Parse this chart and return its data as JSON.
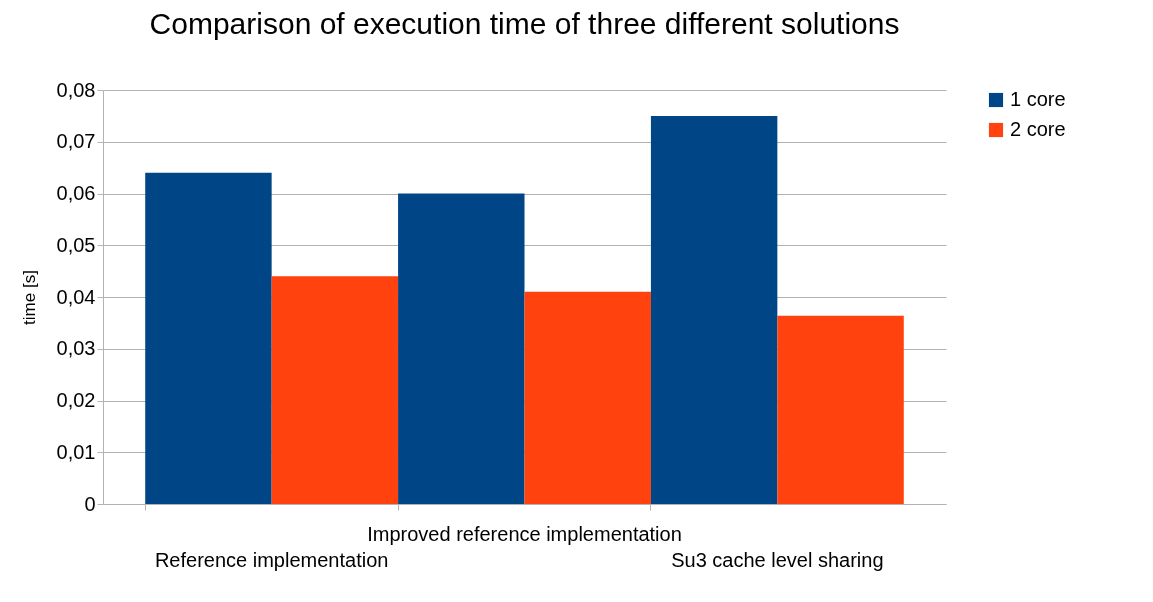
{
  "chart_data": {
    "type": "bar",
    "title": "Comparison of execution time of three different solutions",
    "ylabel": "time [s]",
    "categories": [
      "Reference implementation",
      "Improved reference implementation",
      "Su3 cache level sharing"
    ],
    "series": [
      {
        "name": "1 core",
        "color": "#004586",
        "values": [
          0.064,
          0.06,
          0.075
        ]
      },
      {
        "name": "2 core",
        "color": "#ff420e",
        "values": [
          0.044,
          0.041,
          0.0364
        ]
      }
    ],
    "ylim": [
      0,
      0.08
    ],
    "yticks": [
      0,
      {
        "value": 0.01,
        "label": "0,01"
      },
      {
        "value": 0.02,
        "label": "0,02"
      },
      {
        "value": 0.03,
        "label": "0,03"
      },
      {
        "value": 0.04,
        "label": "0,04"
      },
      {
        "value": 0.05,
        "label": "0,05"
      },
      {
        "value": 0.06,
        "label": "0,06"
      },
      {
        "value": 0.07,
        "label": "0,07"
      },
      {
        "value": 0.08,
        "label": "0,08"
      }
    ],
    "grid": "y",
    "legend": "right"
  }
}
